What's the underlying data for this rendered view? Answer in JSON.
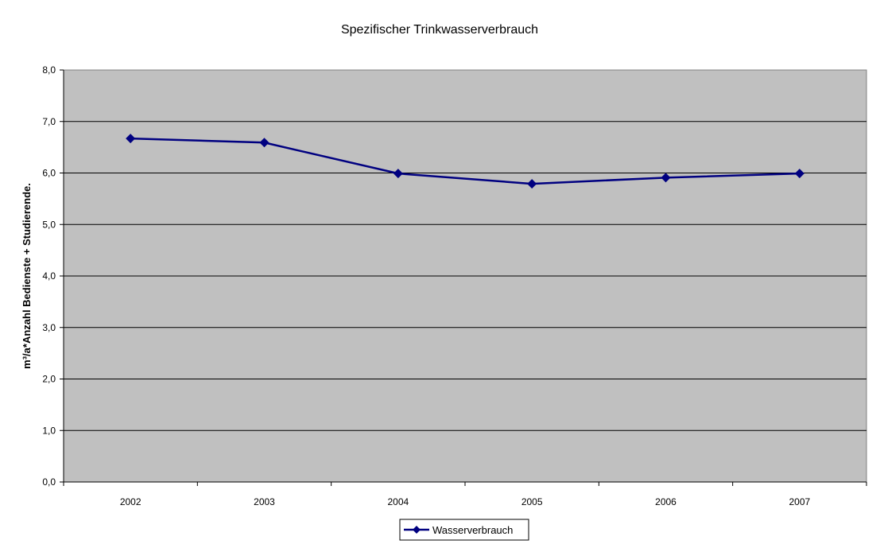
{
  "chart_data": {
    "type": "line",
    "title": "Spezifischer Trinkwasserverbrauch",
    "xlabel": "",
    "ylabel": "m³/a*Anzahl Bedienste + Studierende.",
    "categories": [
      "2002",
      "2003",
      "2004",
      "2005",
      "2006",
      "2007"
    ],
    "series": [
      {
        "name": "Wasserverbrauch",
        "values": [
          6.67,
          6.59,
          5.99,
          5.79,
          5.91,
          5.99
        ]
      }
    ],
    "ylim": [
      0,
      8
    ],
    "yticks": [
      "0,0",
      "1,0",
      "2,0",
      "3,0",
      "4,0",
      "5,0",
      "6,0",
      "7,0",
      "8,0"
    ],
    "grid": true,
    "legend_position": "bottom",
    "colors": {
      "plot_background": "#c0c0c0",
      "series_line": "#000080",
      "gridline": "#000000"
    }
  }
}
